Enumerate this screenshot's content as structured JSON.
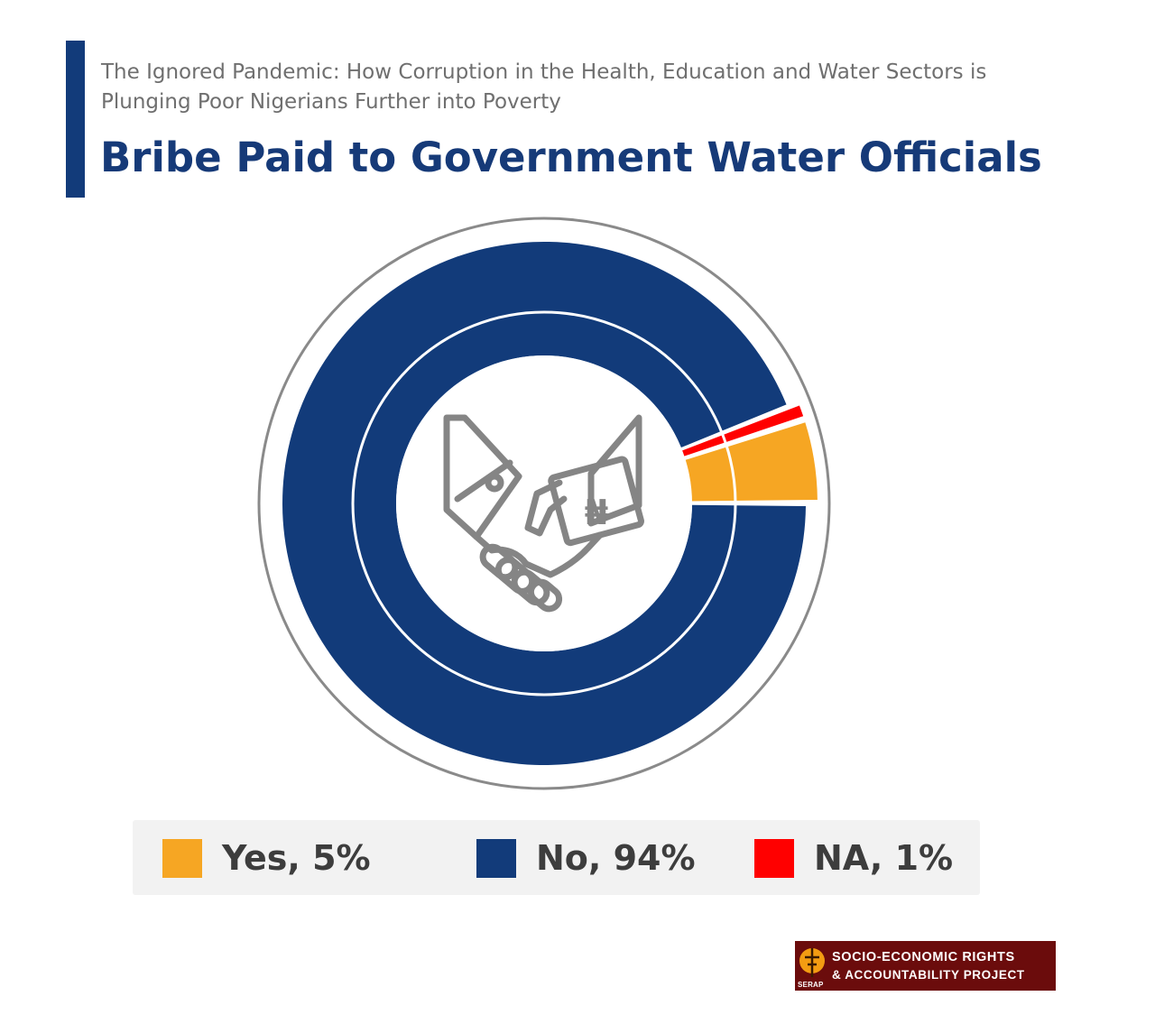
{
  "header": {
    "subtitle": "The Ignored Pandemic: How Corruption in the Health, Education and Water Sectors is Plunging Poor Nigerians Further into Poverty",
    "title": "Bribe Paid to Government Water Officials"
  },
  "colors": {
    "accent": "#123b7a",
    "yes": "#f6a623",
    "no": "#123b7a",
    "na": "#ff0000",
    "outline": "#8a8a8a"
  },
  "center_icon": "handshake-bribe-icon",
  "naira_symbol": "₦",
  "chart_data": {
    "type": "pie",
    "style": "donut",
    "title": "Bribe Paid to Government Water Officials",
    "categories": [
      "Yes",
      "No",
      "NA"
    ],
    "values": [
      5,
      94,
      1
    ],
    "unit": "%",
    "legend": "bottom",
    "labels": [
      "Yes, 5%",
      "No, 94%",
      "NA, 1%"
    ]
  },
  "footer": {
    "logo_abbrev": "SERAP",
    "logo_line1": "SOCIO-ECONOMIC RIGHTS",
    "logo_line2": "& ACCOUNTABILITY PROJECT"
  }
}
